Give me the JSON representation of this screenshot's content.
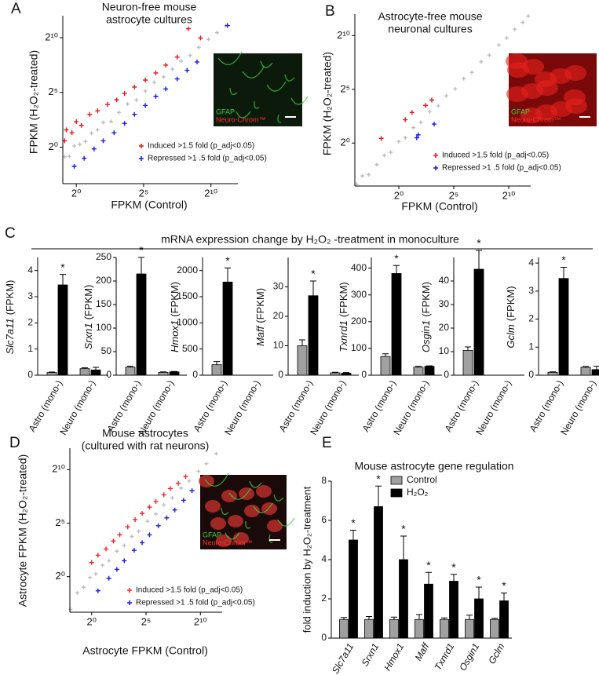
{
  "chart_data": [
    {
      "type": "scatter",
      "panel": "A",
      "title": [
        "Neuron-free mouse",
        "astrocyte cultures"
      ],
      "xlabel": "FPKM  (Control)",
      "ylabel": "FPKM  (H₂O₂-treated)",
      "log_scale": true,
      "xlim": [
        0.5,
        4096
      ],
      "ylim": [
        0.1,
        4096
      ],
      "xticks": [
        {
          "value": 1,
          "label": "2⁰"
        },
        {
          "value": 32,
          "label": "2⁵"
        },
        {
          "value": 1024,
          "label": "2¹⁰"
        }
      ],
      "yticks": [
        {
          "value": 1,
          "label": "2⁰"
        },
        {
          "value": 32,
          "label": "2⁵"
        },
        {
          "value": 1024,
          "label": "2¹⁰"
        }
      ],
      "inset_labels": [
        "GFAP",
        "Neuro-Chrom™"
      ],
      "series": [
        {
          "color": "#bdbdbd",
          "x": [
            0.55,
            0.7,
            0.9,
            1.2,
            1.6,
            2.2,
            3,
            4,
            6,
            9,
            14,
            22,
            35,
            55,
            90,
            140,
            220,
            350,
            550,
            900,
            1400,
            2200
          ],
          "y": [
            0.55,
            0.56,
            1.08,
            1.2,
            1.44,
            2.42,
            3,
            4.8,
            5.1,
            9,
            15.4,
            19.8,
            35,
            60.5,
            85.5,
            140,
            231,
            332.5,
            550,
            918,
            1400,
            2156
          ]
        },
        {
          "name": "Induced >1.5 fold (p_adj<0.05)",
          "color": "#e8141c",
          "x": [
            0.55,
            0.6,
            0.8,
            1,
            1.3,
            2,
            3,
            5,
            8,
            12,
            20,
            35,
            60,
            100,
            180,
            320,
            600
          ],
          "y": [
            1.5,
            3,
            2.5,
            5,
            4,
            8,
            10,
            15,
            20,
            30,
            45,
            70,
            110,
            180,
            300,
            1800,
            1000
          ]
        },
        {
          "name": "Repressed >1 .5 fold (p_adj<0.05)",
          "color": "#1a1ae6",
          "x": [
            0.9,
            1.5,
            2.5,
            4,
            7,
            12,
            20,
            35,
            60,
            100,
            180,
            300,
            500,
            2400
          ],
          "y": [
            0.3,
            0.5,
            0.9,
            1.5,
            2.5,
            4.5,
            8,
            14,
            25,
            40,
            75,
            130,
            220,
            2200
          ]
        }
      ]
    },
    {
      "type": "scatter",
      "panel": "B",
      "title": [
        "Astrocyte-free mouse",
        "neuronal cultures"
      ],
      "xlabel": "FPKM  (Control)",
      "ylabel": "FPKM  (H₂O₂-treated)",
      "log_scale": true,
      "xlim": [
        0.0625,
        4096
      ],
      "ylim": [
        0.0625,
        4096
      ],
      "xticks": [
        {
          "value": 1,
          "label": "2⁰"
        },
        {
          "value": 32,
          "label": "2⁵"
        },
        {
          "value": 1024,
          "label": "2¹⁰"
        }
      ],
      "yticks": [
        {
          "value": 1,
          "label": "2⁰"
        },
        {
          "value": 32,
          "label": "2⁵"
        },
        {
          "value": 1024,
          "label": "2¹⁰"
        }
      ],
      "inset_labels": [
        "GFAP",
        "Neuro-Chrom™"
      ],
      "series": [
        {
          "color": "#bdbdbd",
          "x": [
            0.07,
            0.1,
            0.15,
            0.25,
            0.4,
            0.6,
            1,
            1.5,
            2.5,
            4,
            7,
            12,
            20,
            35,
            60,
            100,
            180,
            300,
            550,
            900,
            1500,
            2500,
            3500
          ],
          "y": [
            0.07,
            0.12,
            0.13,
            0.25,
            0.45,
            0.55,
            1.1,
            1.4,
            2.7,
            3.8,
            7.5,
            11,
            21,
            33,
            64,
            95,
            190,
            290,
            560,
            880,
            1550,
            2400,
            3600
          ]
        },
        {
          "name": "Induced >1.5 fold (p_adj<0.05)",
          "color": "#e8141c",
          "x": [
            0.33,
            1.5,
            2.3,
            5.4,
            8
          ],
          "y": [
            1.35,
            4.5,
            7.2,
            11.3,
            16
          ]
        },
        {
          "name": "Repressed >1 .5 fold (p_adj<0.05)",
          "color": "#1a1ae6",
          "x": [
            3.1,
            3.4,
            9.3
          ],
          "y": [
            1.4,
            1.7,
            3.4
          ]
        }
      ]
    },
    {
      "type": "bar",
      "panel": "C",
      "section_title": "mRNA expression change by H₂O₂ -treatment in monoculture",
      "gene": "Slc7a11",
      "ylabel": "(FPKM)",
      "categories": [
        "Astro (mono-)",
        "Neuro (mono-)"
      ],
      "ylim": [
        0,
        4.5
      ],
      "yticks": [
        0,
        1,
        2,
        3,
        4
      ],
      "series": [
        {
          "color": "#a0a0a0",
          "values": [
            0.1,
            0.25
          ],
          "errors": [
            0.02,
            0.03
          ]
        },
        {
          "color": "#000000",
          "values": [
            3.45,
            0.2
          ],
          "errors": [
            0.4,
            0.1
          ],
          "annotations": [
            "*",
            null
          ]
        }
      ]
    },
    {
      "type": "bar",
      "gene": "Srxn1",
      "ylabel": "(FPKM)",
      "categories": [
        "Astro (mono-)",
        "Neuro (mono-)"
      ],
      "ylim": [
        0,
        250
      ],
      "yticks": [
        0,
        50,
        100,
        150,
        200,
        250
      ],
      "series": [
        {
          "color": "#a0a0a0",
          "values": [
            17,
            6
          ],
          "errors": [
            2,
            1
          ]
        },
        {
          "color": "#000000",
          "values": [
            215,
            7
          ],
          "errors": [
            35,
            1
          ],
          "annotations": [
            "*",
            null
          ]
        }
      ]
    },
    {
      "type": "bar",
      "gene": "Hmox1",
      "ylabel": "(FPKM)",
      "categories": [
        "Astro (mono-)",
        "Neuro (mono-)"
      ],
      "ylim": [
        0,
        2250
      ],
      "yticks": [
        0,
        500,
        1000,
        1500,
        2000
      ],
      "series": [
        {
          "color": "#a0a0a0",
          "values": [
            200,
            0
          ],
          "errors": [
            60,
            0
          ]
        },
        {
          "color": "#000000",
          "values": [
            1780,
            0
          ],
          "errors": [
            270,
            0
          ],
          "annotations": [
            "*",
            null
          ]
        }
      ]
    },
    {
      "type": "bar",
      "gene": "Maff",
      "ylabel": "(FPKM)",
      "categories": [
        "Astro (mono-)",
        "Neuro (mono-)"
      ],
      "ylim": [
        0,
        40
      ],
      "yticks": [
        0,
        10,
        20,
        30
      ],
      "series": [
        {
          "color": "#a0a0a0",
          "values": [
            10,
            0.8
          ],
          "errors": [
            2,
            0.2
          ]
        },
        {
          "color": "#000000",
          "values": [
            27,
            0.7
          ],
          "errors": [
            5,
            0.2
          ],
          "annotations": [
            "*",
            null
          ]
        }
      ]
    },
    {
      "type": "bar",
      "gene": "Txnrd1",
      "ylabel": "(FPKM)",
      "categories": [
        "Astro (mono-)",
        "Neuro (mono-)"
      ],
      "ylim": [
        0,
        440
      ],
      "yticks": [
        0,
        100,
        200,
        300,
        400
      ],
      "series": [
        {
          "color": "#a0a0a0",
          "values": [
            70,
            30
          ],
          "errors": [
            10,
            3
          ]
        },
        {
          "color": "#000000",
          "values": [
            380,
            33
          ],
          "errors": [
            30,
            2
          ],
          "annotations": [
            "*",
            null
          ]
        }
      ]
    },
    {
      "type": "bar",
      "gene": "Osgin1",
      "ylabel": "(FPKM)",
      "categories": [
        "Astro (mono-)",
        "Neuro (mono-)"
      ],
      "ylim": [
        0,
        50
      ],
      "yticks": [
        0,
        10,
        20,
        30,
        40
      ],
      "series": [
        {
          "color": "#a0a0a0",
          "values": [
            10.5,
            0
          ],
          "errors": [
            1.5,
            0
          ]
        },
        {
          "color": "#000000",
          "values": [
            45,
            0
          ],
          "errors": [
            8,
            0
          ],
          "annotations": [
            "*",
            null
          ]
        }
      ]
    },
    {
      "type": "bar",
      "gene": "Gclm",
      "ylabel": "(FPKM)",
      "categories": [
        "Astro (mono-)",
        "Neuro (mono-)"
      ],
      "ylim": [
        0,
        4.2
      ],
      "yticks": [
        0,
        1,
        2,
        3,
        4
      ],
      "series": [
        {
          "color": "#a0a0a0",
          "values": [
            0.1,
            0.28
          ],
          "errors": [
            0.02,
            0.03
          ]
        },
        {
          "color": "#000000",
          "values": [
            3.45,
            0.2
          ],
          "errors": [
            0.4,
            0.12
          ],
          "annotations": [
            "*",
            null
          ]
        }
      ]
    },
    {
      "type": "scatter",
      "panel": "D",
      "title": [
        "Mouse astrocytes",
        "(cultured with rat neurons)"
      ],
      "xlabel": "Astrocyte FPKM  (Control)",
      "ylabel": "Astrocyte FPKM  (H₂O₂-treated)",
      "log_scale": true,
      "xlim": [
        0.25,
        4096
      ],
      "ylim": [
        0.1,
        4096
      ],
      "xticks": [
        {
          "value": 1,
          "label": "2⁰"
        },
        {
          "value": 32,
          "label": "2⁵"
        },
        {
          "value": 1024,
          "label": "2¹⁰"
        }
      ],
      "yticks": [
        {
          "value": 1,
          "label": "2⁰"
        },
        {
          "value": 32,
          "label": "2⁵"
        },
        {
          "value": 1024,
          "label": "2¹⁰"
        }
      ],
      "inset_labels": [
        "GFAP",
        "Neuro-Chrom™"
      ],
      "series": [
        {
          "color": "#bdbdbd",
          "x": [
            0.26,
            0.4,
            0.6,
            0.9,
            1.3,
            2,
            3,
            5,
            8,
            13,
            20,
            35,
            60,
            100,
            170,
            300,
            500,
            900,
            1500,
            2800
          ],
          "y": [
            0.12,
            0.35,
            0.5,
            0.95,
            1.2,
            2.1,
            2.8,
            5.2,
            7.5,
            13.5,
            19,
            36,
            58,
            104,
            165,
            310,
            490,
            920,
            1500,
            2900
          ]
        },
        {
          "name": "Induced >1.5 fold (p_adj<0.05)",
          "color": "#f0282d",
          "x": [
            1,
            1.5,
            2.5,
            4,
            6,
            10,
            16,
            25,
            40,
            60,
            100,
            150,
            250,
            400
          ],
          "y": [
            2.5,
            4,
            6,
            10,
            15,
            25,
            40,
            60,
            90,
            130,
            200,
            300,
            420,
            650
          ]
        },
        {
          "name": "Repressed >1 .5 fold (p_adj<0.05)",
          "color": "#1a1ae6",
          "x": [
            1.5,
            3,
            5,
            8,
            15,
            25,
            40,
            70,
            120,
            200,
            350,
            600
          ],
          "y": [
            0.4,
            0.9,
            1.6,
            2.8,
            5.5,
            9,
            15,
            27,
            45,
            75,
            140,
            260
          ]
        }
      ]
    },
    {
      "type": "bar",
      "panel": "E",
      "title": [
        "Mouse astrocyte gene regulation"
      ],
      "ylabel": "fold induction by H₂O₂-treatment",
      "category_style": "italic",
      "categories": [
        "Slc7a11",
        "Srxn1",
        "Hmox1",
        "Maff",
        "Txnrd1",
        "Osgin1",
        "Gclm"
      ],
      "ylim": [
        0,
        8
      ],
      "yticks": [
        0,
        2,
        4,
        6,
        8
      ],
      "series": [
        {
          "name": "Control",
          "color": "#a0a0a0",
          "values": [
            0.95,
            0.95,
            0.95,
            0.95,
            0.95,
            0.95,
            0.95
          ],
          "errors": [
            0.1,
            0.15,
            0.12,
            0.25,
            0.08,
            0.22,
            0.06
          ]
        },
        {
          "name": "H₂O₂",
          "color": "#000000",
          "values": [
            5,
            6.7,
            4,
            2.75,
            2.9,
            2,
            1.9
          ],
          "errors": [
            0.5,
            1.05,
            1.2,
            0.6,
            0.35,
            0.6,
            0.4
          ],
          "annotations": [
            "*",
            "*",
            "*",
            "*",
            "*",
            "*",
            "*"
          ]
        }
      ]
    }
  ]
}
